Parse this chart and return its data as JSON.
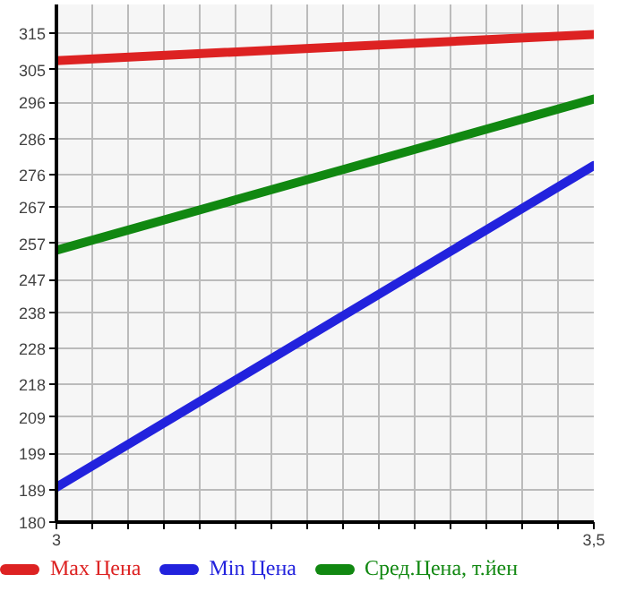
{
  "chart_data": {
    "type": "line",
    "x": [
      3,
      3.5
    ],
    "series": [
      {
        "name": "Max Цена",
        "color": "#dd2222",
        "values": [
          307.5,
          314.7
        ]
      },
      {
        "name": "Min Цена",
        "color": "#2222dd",
        "values": [
          189.6,
          278.5
        ]
      },
      {
        "name": "Сред.Цена, т.йен",
        "color": "#118811",
        "values": [
          255.1,
          296.9
        ]
      }
    ],
    "xlim": [
      3,
      3.5
    ],
    "xticks": [
      {
        "value": 3,
        "label": "3"
      },
      {
        "value": 3.0333,
        "label": null
      },
      {
        "value": 3.0667,
        "label": null
      },
      {
        "value": 3.1,
        "label": null
      },
      {
        "value": 3.1333,
        "label": null
      },
      {
        "value": 3.1667,
        "label": null
      },
      {
        "value": 3.2,
        "label": null
      },
      {
        "value": 3.2333,
        "label": null
      },
      {
        "value": 3.2667,
        "label": null
      },
      {
        "value": 3.3,
        "label": null
      },
      {
        "value": 3.3333,
        "label": null
      },
      {
        "value": 3.3667,
        "label": null
      },
      {
        "value": 3.4,
        "label": null
      },
      {
        "value": 3.4333,
        "label": null
      },
      {
        "value": 3.4667,
        "label": null
      },
      {
        "value": 3.5,
        "label": "3,5"
      }
    ],
    "ylim": [
      180,
      323
    ],
    "yticks": [
      180,
      189,
      199,
      209,
      218,
      228,
      238,
      247,
      257,
      267,
      276,
      286,
      296,
      305,
      315
    ],
    "grid": true,
    "legend": "bottom",
    "marker": "none",
    "line_style": "solid"
  }
}
